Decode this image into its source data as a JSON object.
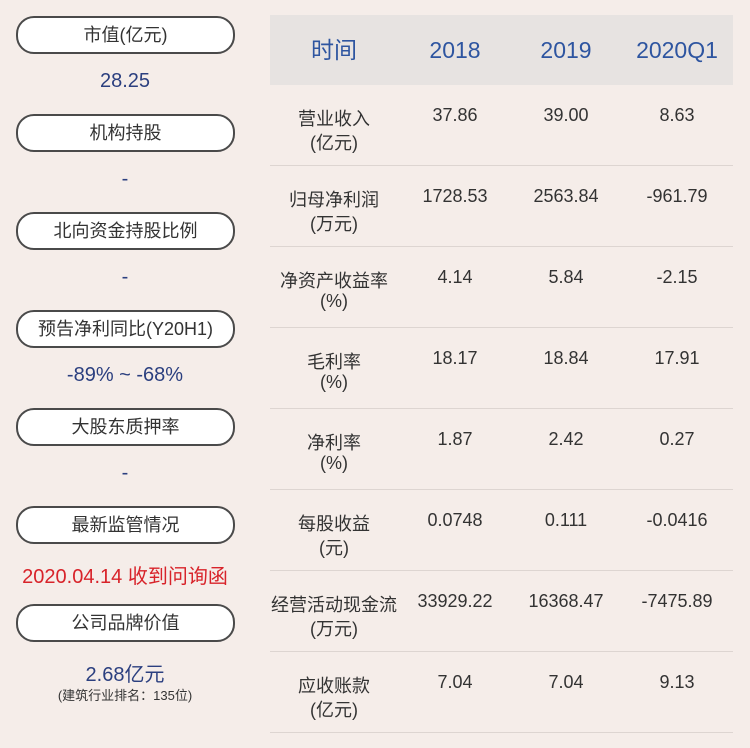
{
  "left": {
    "items": [
      {
        "label": "市值(亿元)",
        "value": "28.25"
      },
      {
        "label": "机构持股",
        "value": "-"
      },
      {
        "label": "北向资金持股比例",
        "value": "-"
      },
      {
        "label": "预告净利同比(Y20H1)",
        "value": "-89% ~ -68%"
      },
      {
        "label": "大股东质押率",
        "value": "-"
      },
      {
        "label": "最新监管情况",
        "value": "2020.04.14 收到问询函"
      },
      {
        "label": "公司品牌价值",
        "value": "2.68亿元",
        "note": "(建筑行业排名：135位)"
      }
    ]
  },
  "table": {
    "header": [
      "时间",
      "2018",
      "2019",
      "2020Q1"
    ],
    "rows": [
      [
        "营业收入",
        "(亿元)",
        "37.86",
        "39.00",
        "8.63"
      ],
      [
        "归母净利润",
        "(万元)",
        "1728.53",
        "2563.84",
        "-961.79"
      ],
      [
        "净资产收益率",
        "(%)",
        "4.14",
        "5.84",
        "-2.15"
      ],
      [
        "毛利率",
        "(%)",
        "18.17",
        "18.84",
        "17.91"
      ],
      [
        "净利率",
        "(%)",
        "1.87",
        "2.42",
        "0.27"
      ],
      [
        "每股收益",
        "(元)",
        "0.0748",
        "0.111",
        "-0.0416"
      ],
      [
        "经营活动现金流",
        "(万元)",
        "33929.22",
        "16368.47",
        "-7475.89"
      ],
      [
        "应收账款",
        "(亿元)",
        "7.04",
        "7.04",
        "9.13"
      ]
    ]
  }
}
